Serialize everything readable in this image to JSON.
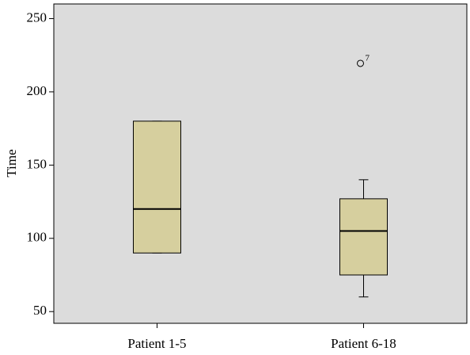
{
  "chart_data": {
    "type": "box",
    "ylabel": "Time",
    "categories": [
      "Patient 1-5",
      "Patient 6-18"
    ],
    "boxes": [
      {
        "min": 90,
        "q1": 90,
        "median": 120,
        "q3": 180,
        "max": 180,
        "outliers": []
      },
      {
        "min": 60,
        "q1": 75,
        "median": 105,
        "q3": 127,
        "max": 140,
        "outliers": [
          {
            "value": 220,
            "label": "7"
          }
        ]
      }
    ],
    "color": "#d6cf9e",
    "background": "#dcdcdc",
    "ylim": [
      42,
      260
    ],
    "yticks": [
      50,
      100,
      150,
      200,
      250
    ]
  }
}
